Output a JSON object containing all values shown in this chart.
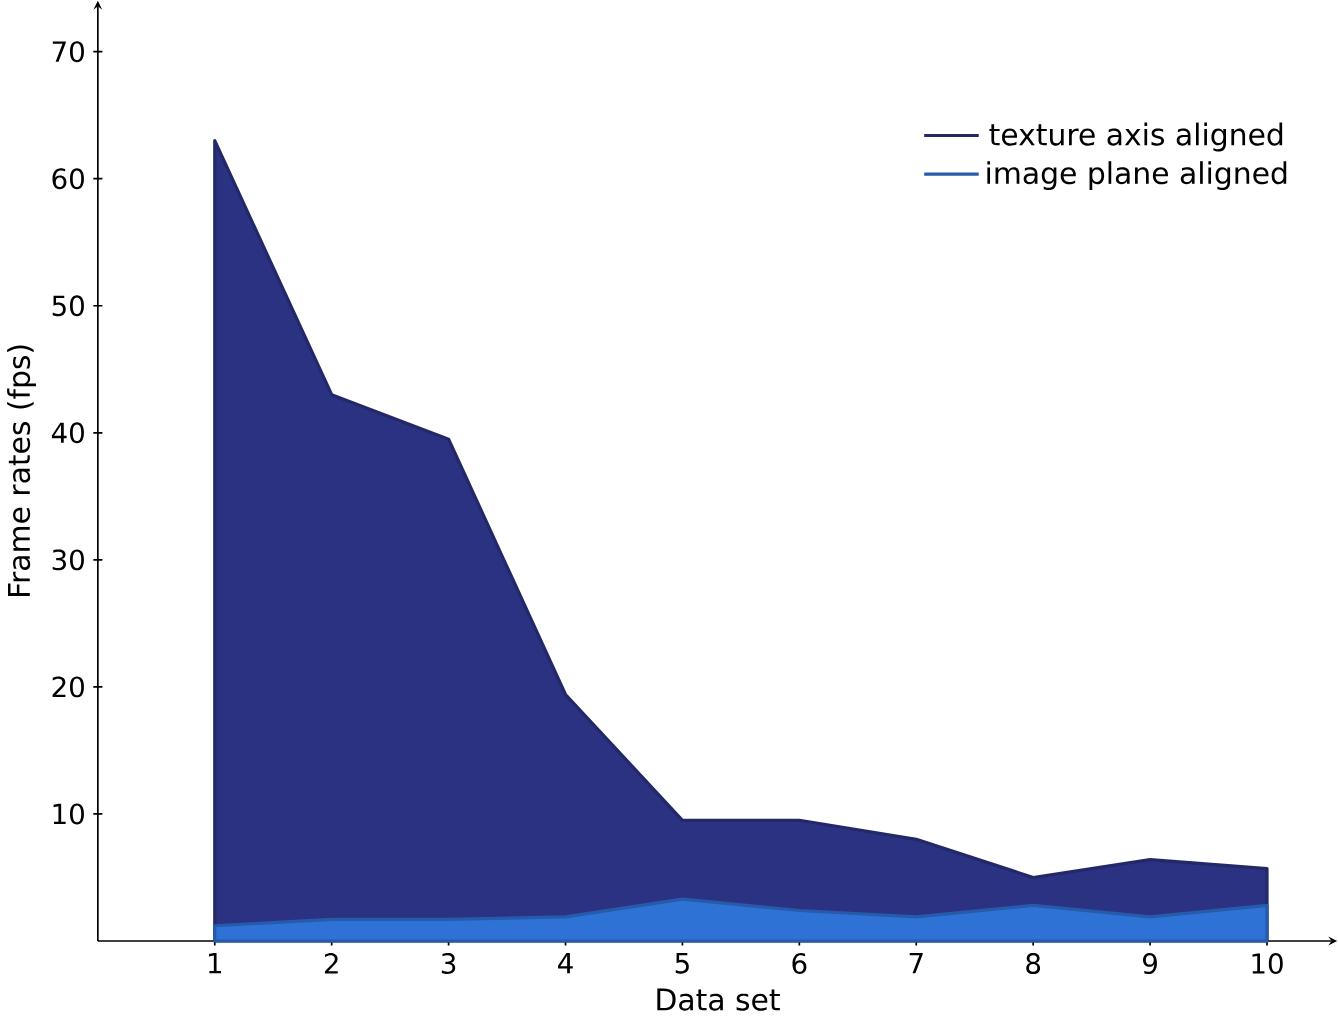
{
  "chart_data": {
    "type": "area",
    "xlabel": "Data set",
    "ylabel": "Frame rates (fps)",
    "x": [
      1,
      2,
      3,
      4,
      5,
      6,
      7,
      8,
      9,
      10
    ],
    "series": [
      {
        "name": "texture axis aligned",
        "color": "#2b3282",
        "values": [
          63,
          43,
          39.5,
          19.4,
          9.5,
          9.5,
          8,
          5,
          6.4,
          5.7
        ]
      },
      {
        "name": "image plane aligned",
        "color": "#2f72d6",
        "values": [
          1.2,
          1.7,
          1.7,
          1.9,
          3.3,
          2.4,
          1.9,
          2.8,
          1.9,
          2.8
        ]
      }
    ],
    "xlim": [
      0,
      10.6
    ],
    "ylim": [
      0,
      74
    ],
    "xticks": [
      1,
      2,
      3,
      4,
      5,
      6,
      7,
      8,
      9,
      10
    ],
    "yticks": [
      10,
      20,
      30,
      40,
      50,
      60,
      70
    ],
    "grid": false,
    "legend": "top right"
  }
}
